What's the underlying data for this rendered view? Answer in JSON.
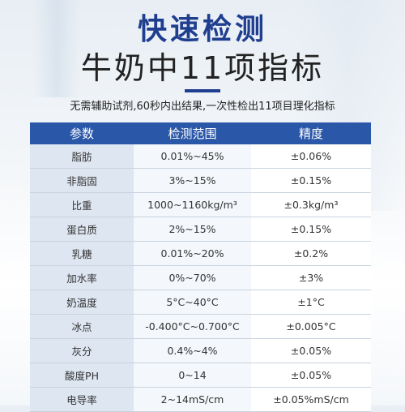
{
  "header": {
    "title": "快速检测",
    "subtitle": "牛奶中11项指标",
    "description": "无需辅助试剂,60秒内出结果,一次性检出11项目理化指标"
  },
  "table": {
    "headers": [
      "参数",
      "检测范围",
      "精度"
    ],
    "rows": [
      [
        "脂肪",
        "0.01%~45%",
        "±0.06%"
      ],
      [
        "非脂固",
        "3%~15%",
        "±0.15%"
      ],
      [
        "比重",
        "1000~1160kg/m³",
        "±0.3kg/m³"
      ],
      [
        "蛋白质",
        "2%~15%",
        "±0.15%"
      ],
      [
        "乳糖",
        "0.01%~20%",
        "±0.2%"
      ],
      [
        "加水率",
        "0%~70%",
        "±3%"
      ],
      [
        "奶温度",
        "5°C~40°C",
        "±1°C"
      ],
      [
        "冰点",
        "-0.400°C~0.700°C",
        "±0.005°C"
      ],
      [
        "灰分",
        "0.4%~4%",
        "±0.05%"
      ],
      [
        "酸度PH",
        "0~14",
        "±0.05%"
      ],
      [
        "电导率",
        "2~14mS/cm",
        "±0.05%mS/cm"
      ]
    ]
  },
  "colors": {
    "accent": "#1f3e8f",
    "table_header": "#2b57a8"
  }
}
